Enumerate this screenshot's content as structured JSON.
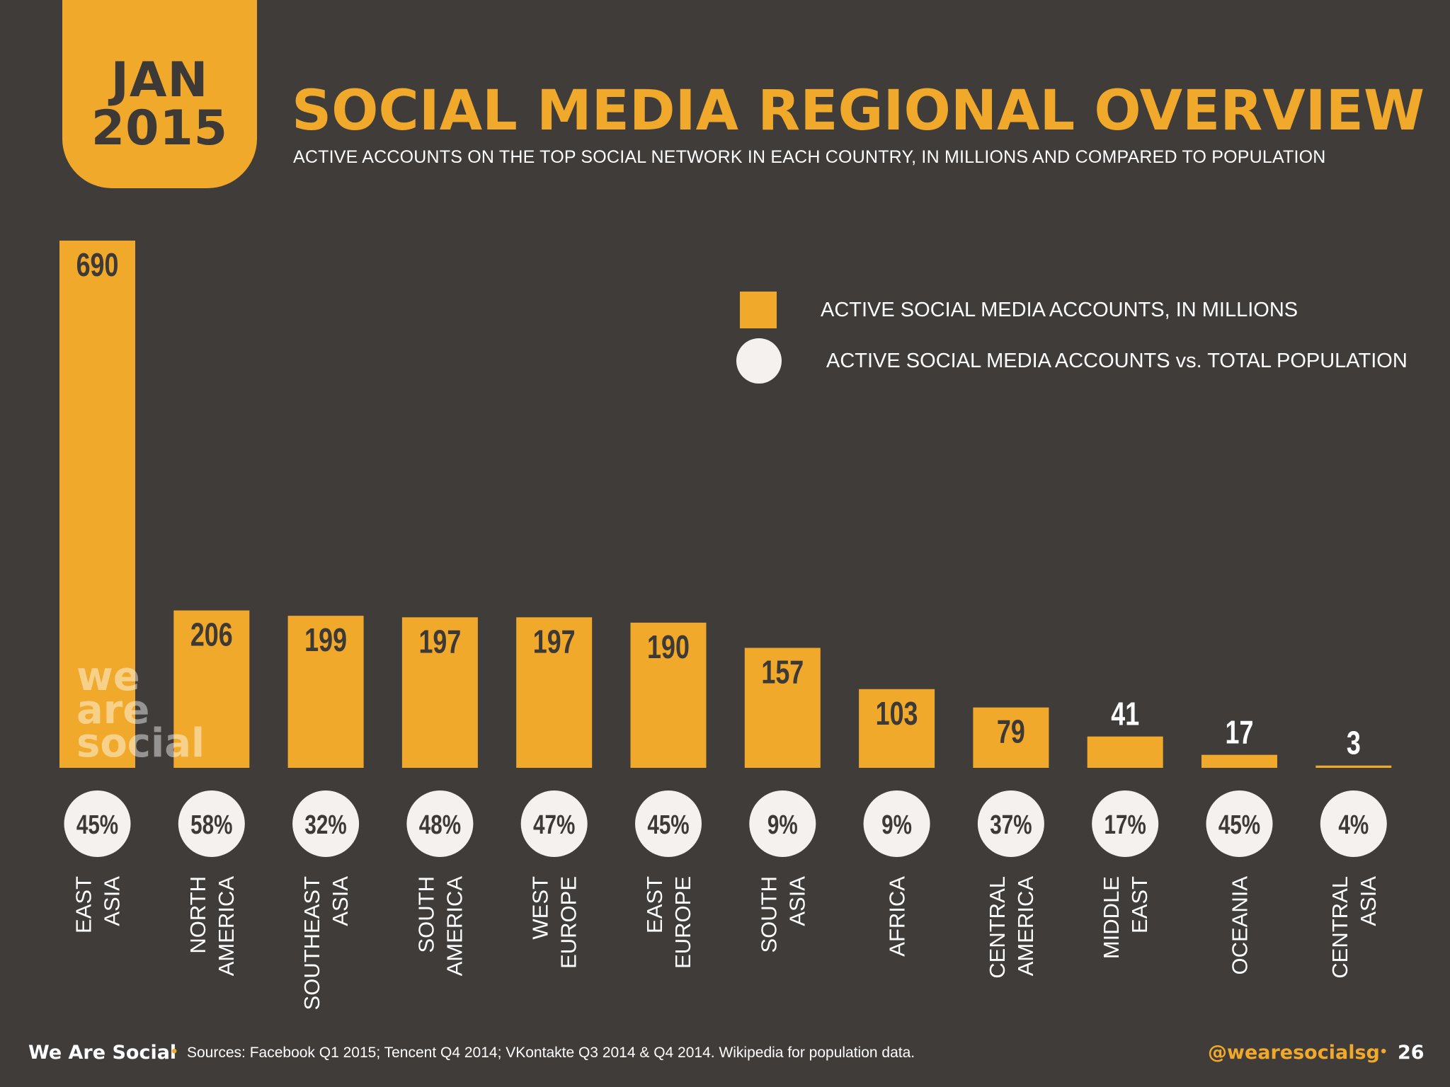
{
  "badge": {
    "month": "JAN",
    "year": "2015"
  },
  "header": {
    "title": "SOCIAL MEDIA REGIONAL OVERVIEW",
    "subtitle": "ACTIVE ACCOUNTS ON THE TOP SOCIAL NETWORK IN EACH COUNTRY, IN MILLIONS AND COMPARED TO POPULATION"
  },
  "legend": {
    "bars_label": "ACTIVE SOCIAL MEDIA ACCOUNTS, IN MILLIONS",
    "circles_label": "ACTIVE SOCIAL MEDIA ACCOUNTS vs. TOTAL POPULATION"
  },
  "watermark": "we are social",
  "colors": {
    "accent": "#f0a92a",
    "background": "#403c3a",
    "circle": "#f4f1ef",
    "text_dark": "#3d3936"
  },
  "chart_data": {
    "type": "bar",
    "categories": [
      [
        "EAST",
        "ASIA"
      ],
      [
        "NORTH",
        "AMERICA"
      ],
      [
        "SOUTHEAST",
        "ASIA"
      ],
      [
        "SOUTH",
        "AMERICA"
      ],
      [
        "WEST",
        "EUROPE"
      ],
      [
        "EAST",
        "EUROPE"
      ],
      [
        "SOUTH",
        "ASIA"
      ],
      [
        "AFRICA"
      ],
      [
        "CENTRAL",
        "AMERICA"
      ],
      [
        "MIDDLE",
        "EAST"
      ],
      [
        "OCEANIA"
      ],
      [
        "CENTRAL",
        "ASIA"
      ]
    ],
    "series": [
      {
        "name": "ACTIVE SOCIAL MEDIA ACCOUNTS, IN MILLIONS",
        "values": [
          690,
          206,
          199,
          197,
          197,
          190,
          157,
          103,
          79,
          41,
          17,
          3
        ]
      },
      {
        "name": "ACTIVE SOCIAL MEDIA ACCOUNTS vs. TOTAL POPULATION",
        "values": [
          "45%",
          "58%",
          "32%",
          "48%",
          "47%",
          "45%",
          "9%",
          "9%",
          "37%",
          "17%",
          "45%",
          "4%"
        ]
      }
    ],
    "ylim": [
      0,
      690
    ]
  },
  "footer": {
    "brand": "We Are Social",
    "sources": "Sources: Facebook Q1 2015; Tencent Q4 2014; VKontakte Q3 2014 & Q4 2014. Wikipedia for population data.",
    "handle": "@wearesocialsg",
    "page": "26"
  }
}
